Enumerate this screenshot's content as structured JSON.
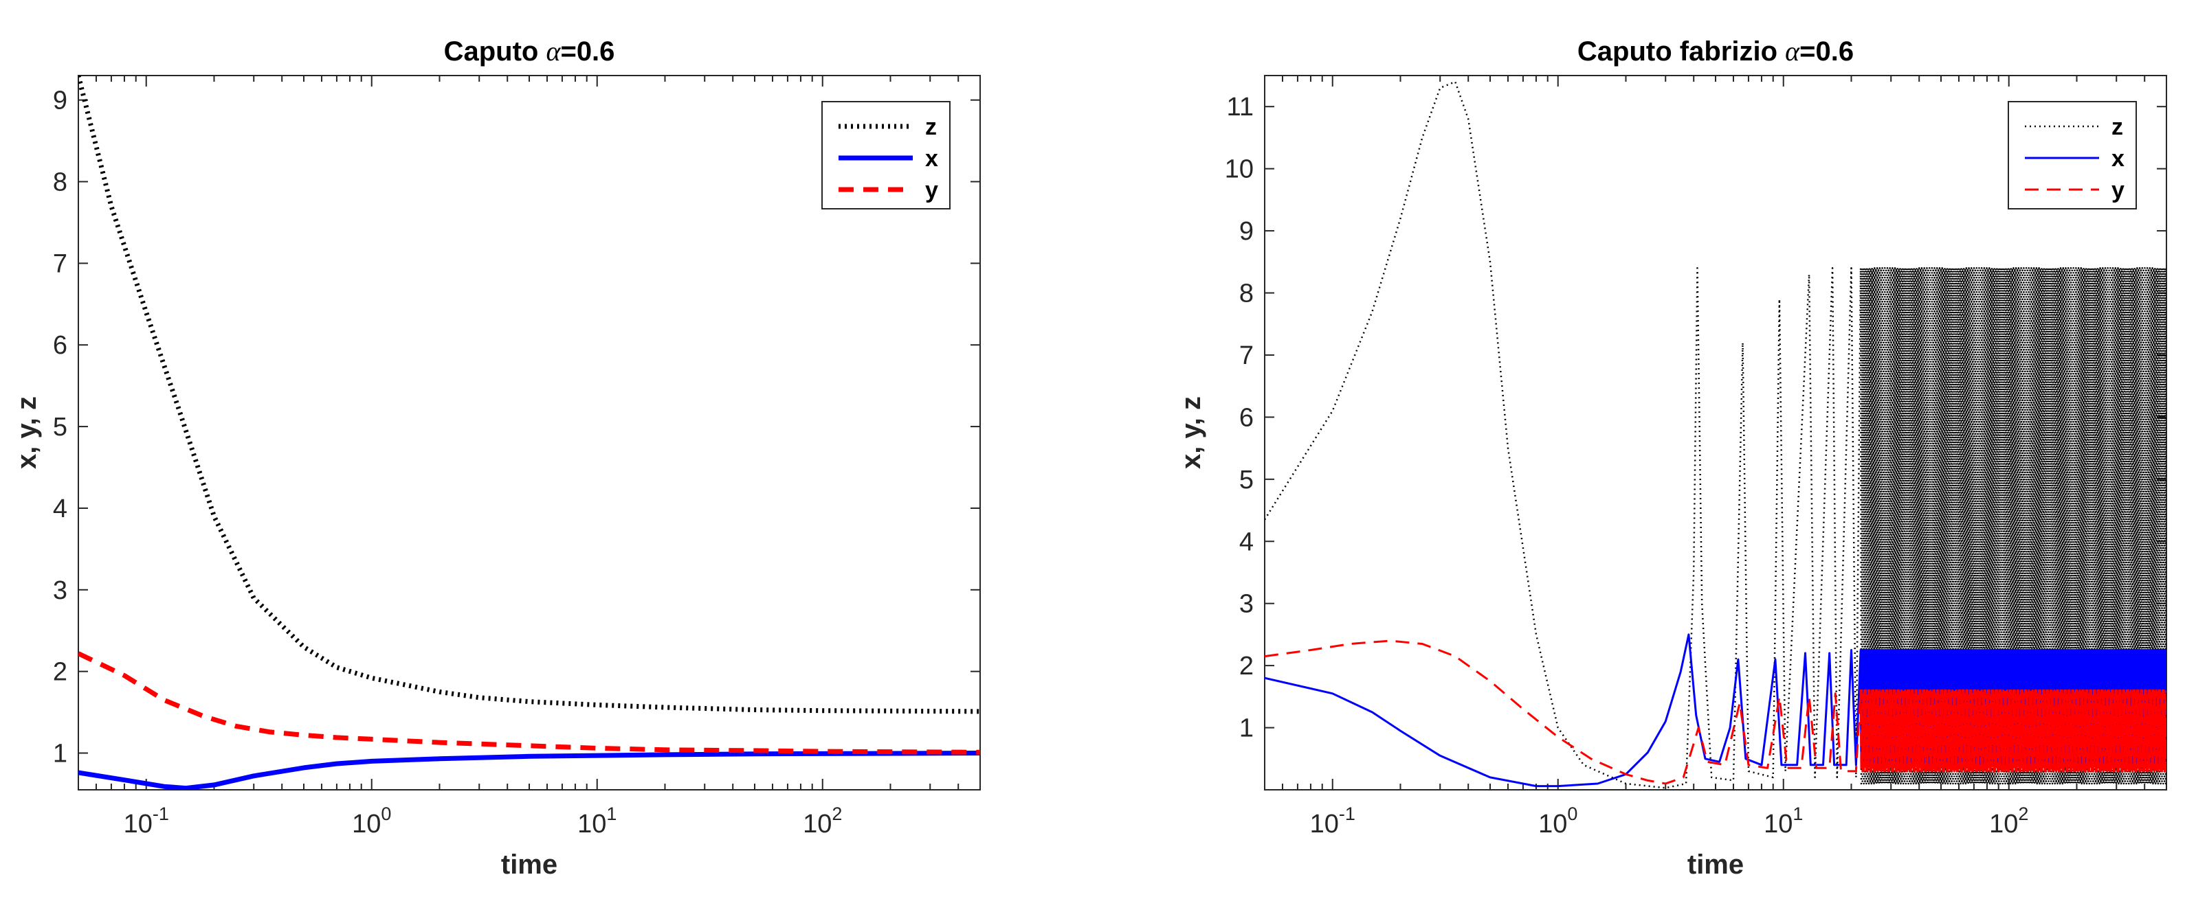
{
  "chart_data": [
    {
      "type": "line",
      "title_prefix": "Caputo ",
      "title_alpha": "α",
      "title_suffix": "=0.6",
      "xlabel": "time",
      "ylabel": "x, y, z",
      "xscale": "log",
      "xlim": [
        0.05,
        500
      ],
      "ylim": [
        0.55,
        9.3
      ],
      "yticks": [
        "1",
        "2",
        "3",
        "4",
        "5",
        "6",
        "7",
        "8",
        "9"
      ],
      "xticks": [
        {
          "base": "10",
          "exp": "-1"
        },
        {
          "base": "10",
          "exp": "0"
        },
        {
          "base": "10",
          "exp": "1"
        },
        {
          "base": "10",
          "exp": "2"
        }
      ],
      "legend_position": "top-right",
      "series": [
        {
          "name": "z",
          "color": "#000000",
          "style": "dotted",
          "points": [
            [
              0.05,
              9.3
            ],
            [
              0.07,
              7.7
            ],
            [
              0.1,
              6.4
            ],
            [
              0.14,
              5.2
            ],
            [
              0.2,
              3.9
            ],
            [
              0.3,
              2.9
            ],
            [
              0.5,
              2.3
            ],
            [
              0.7,
              2.05
            ],
            [
              1,
              1.92
            ],
            [
              2,
              1.75
            ],
            [
              3,
              1.68
            ],
            [
              5,
              1.63
            ],
            [
              10,
              1.59
            ],
            [
              20,
              1.56
            ],
            [
              50,
              1.53
            ],
            [
              100,
              1.52
            ],
            [
              500,
              1.51
            ]
          ]
        },
        {
          "name": "x",
          "color": "#0000ff",
          "style": "solid",
          "points": [
            [
              0.05,
              0.76
            ],
            [
              0.08,
              0.67
            ],
            [
              0.12,
              0.59
            ],
            [
              0.15,
              0.57
            ],
            [
              0.2,
              0.61
            ],
            [
              0.3,
              0.72
            ],
            [
              0.5,
              0.82
            ],
            [
              0.7,
              0.87
            ],
            [
              1,
              0.9
            ],
            [
              2,
              0.93
            ],
            [
              5,
              0.96
            ],
            [
              10,
              0.97
            ],
            [
              20,
              0.98
            ],
            [
              50,
              0.99
            ],
            [
              500,
              1.0
            ]
          ]
        },
        {
          "name": "y",
          "color": "#ff0000",
          "style": "dashed",
          "points": [
            [
              0.05,
              2.22
            ],
            [
              0.08,
              1.95
            ],
            [
              0.12,
              1.65
            ],
            [
              0.18,
              1.45
            ],
            [
              0.25,
              1.33
            ],
            [
              0.35,
              1.26
            ],
            [
              0.5,
              1.22
            ],
            [
              0.7,
              1.19
            ],
            [
              1,
              1.17
            ],
            [
              2,
              1.13
            ],
            [
              5,
              1.09
            ],
            [
              10,
              1.06
            ],
            [
              20,
              1.04
            ],
            [
              50,
              1.03
            ],
            [
              100,
              1.02
            ],
            [
              500,
              1.01
            ]
          ]
        }
      ]
    },
    {
      "type": "line",
      "title_prefix": "Caputo fabrizio ",
      "title_alpha": "α",
      "title_suffix": "=0.6",
      "xlabel": "time",
      "ylabel": "x, y, z",
      "xscale": "log",
      "xlim": [
        0.05,
        500
      ],
      "ylim": [
        0,
        11.5
      ],
      "yticks": [
        "1",
        "2",
        "3",
        "4",
        "5",
        "6",
        "7",
        "8",
        "9",
        "10",
        "11"
      ],
      "xticks": [
        {
          "base": "10",
          "exp": "-1"
        },
        {
          "base": "10",
          "exp": "0"
        },
        {
          "base": "10",
          "exp": "1"
        },
        {
          "base": "10",
          "exp": "2"
        }
      ],
      "legend_position": "top-right",
      "series": [
        {
          "name": "z",
          "color": "#000000",
          "style": "dotted",
          "points": [
            [
              0.05,
              4.35
            ],
            [
              0.07,
              5.2
            ],
            [
              0.1,
              6.1
            ],
            [
              0.15,
              7.7
            ],
            [
              0.2,
              9.2
            ],
            [
              0.25,
              10.5
            ],
            [
              0.3,
              11.3
            ],
            [
              0.35,
              11.4
            ],
            [
              0.4,
              10.8
            ],
            [
              0.5,
              8.5
            ],
            [
              0.6,
              5.5
            ],
            [
              0.8,
              2.5
            ],
            [
              1,
              1.0
            ],
            [
              1.3,
              0.4
            ],
            [
              2,
              0.1
            ],
            [
              3,
              0.03
            ],
            [
              3.7,
              0.1
            ],
            [
              4,
              3.5
            ],
            [
              4.15,
              8.4
            ],
            [
              4.35,
              3.0
            ],
            [
              4.8,
              0.2
            ],
            [
              6,
              0.15
            ],
            [
              6.6,
              7.2
            ],
            [
              7,
              0.3
            ],
            [
              9,
              0.2
            ],
            [
              9.6,
              7.9
            ],
            [
              10.2,
              0.3
            ],
            [
              13,
              8.3
            ],
            [
              13.8,
              0.2
            ],
            [
              16.5,
              8.4
            ],
            [
              17.3,
              0.2
            ],
            [
              20,
              8.4
            ],
            [
              21,
              0.2
            ]
          ],
          "dense_band": {
            "from": 22,
            "to": 500,
            "low": 0.1,
            "high": 8.4
          }
        },
        {
          "name": "x",
          "color": "#0000ff",
          "style": "solid",
          "points": [
            [
              0.05,
              1.8
            ],
            [
              0.1,
              1.55
            ],
            [
              0.15,
              1.25
            ],
            [
              0.2,
              0.95
            ],
            [
              0.3,
              0.55
            ],
            [
              0.5,
              0.2
            ],
            [
              0.8,
              0.06
            ],
            [
              1,
              0.06
            ],
            [
              1.5,
              0.1
            ],
            [
              2,
              0.25
            ],
            [
              2.5,
              0.6
            ],
            [
              3,
              1.1
            ],
            [
              3.5,
              1.9
            ],
            [
              3.8,
              2.5
            ],
            [
              4.1,
              1.2
            ],
            [
              4.5,
              0.5
            ],
            [
              5.2,
              0.45
            ],
            [
              5.8,
              1.0
            ],
            [
              6.3,
              2.1
            ],
            [
              6.8,
              0.5
            ],
            [
              8,
              0.4
            ],
            [
              9.2,
              2.1
            ],
            [
              9.8,
              0.4
            ],
            [
              11.5,
              0.4
            ],
            [
              12.5,
              2.2
            ],
            [
              13.2,
              0.4
            ],
            [
              15,
              0.4
            ],
            [
              16,
              2.2
            ],
            [
              16.8,
              0.4
            ],
            [
              19,
              0.4
            ],
            [
              20,
              2.25
            ],
            [
              21,
              0.4
            ]
          ],
          "dense_band": {
            "from": 22,
            "to": 500,
            "low": 0.4,
            "high": 2.25
          }
        },
        {
          "name": "y",
          "color": "#ff0000",
          "style": "dashed",
          "points": [
            [
              0.05,
              2.15
            ],
            [
              0.08,
              2.25
            ],
            [
              0.12,
              2.35
            ],
            [
              0.18,
              2.4
            ],
            [
              0.25,
              2.35
            ],
            [
              0.35,
              2.15
            ],
            [
              0.5,
              1.75
            ],
            [
              0.7,
              1.3
            ],
            [
              1,
              0.85
            ],
            [
              1.4,
              0.5
            ],
            [
              2,
              0.25
            ],
            [
              2.5,
              0.15
            ],
            [
              3,
              0.1
            ],
            [
              3.6,
              0.2
            ],
            [
              4.2,
              1.0
            ],
            [
              4.6,
              0.45
            ],
            [
              5.5,
              0.4
            ],
            [
              6.4,
              1.4
            ],
            [
              7,
              0.4
            ],
            [
              8.5,
              0.35
            ],
            [
              9.6,
              1.5
            ],
            [
              10.4,
              0.35
            ],
            [
              12,
              0.35
            ],
            [
              13,
              1.5
            ],
            [
              14,
              0.35
            ],
            [
              16,
              0.35
            ],
            [
              17,
              1.55
            ],
            [
              18,
              0.3
            ],
            [
              21,
              0.3
            ]
          ],
          "dense_band": {
            "from": 22,
            "to": 500,
            "low": 0.3,
            "high": 1.6
          }
        }
      ]
    }
  ]
}
